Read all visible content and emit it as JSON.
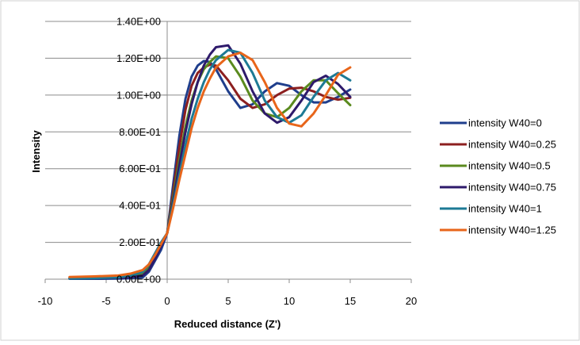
{
  "chart_data": {
    "type": "line",
    "title": "",
    "xlabel": "Reduced distance (Z')",
    "ylabel": "Intensity",
    "xlim": [
      -10,
      20
    ],
    "ylim": [
      0,
      1.4
    ],
    "x_ticks": [
      -10,
      -5,
      0,
      5,
      10,
      15,
      20
    ],
    "x_tick_labels": [
      "-10",
      "-5",
      "0",
      "5",
      "10",
      "15",
      "20"
    ],
    "y_ticks": [
      0,
      0.2,
      0.4,
      0.6,
      0.8,
      1.0,
      1.2,
      1.4
    ],
    "y_tick_labels": [
      "0.00E+00",
      "2.00E-01",
      "4.00E-01",
      "6.00E-01",
      "8.00E-01",
      "1.00E+00",
      "1.20E+00",
      "1.40E+00"
    ],
    "grid": "horizontal",
    "legend_position": "right",
    "series": [
      {
        "name": "intensity W40=0",
        "color": "#1F3E8C",
        "x": [
          -8,
          -6,
          -4,
          -3,
          -2,
          -1.5,
          -1,
          -0.5,
          0,
          0.5,
          1,
          1.5,
          2,
          2.5,
          3,
          3.5,
          4,
          5,
          6,
          7,
          8,
          9,
          10,
          11,
          12,
          13,
          14,
          15
        ],
        "y": [
          0.002,
          0.002,
          0.003,
          0.005,
          0.01,
          0.04,
          0.1,
          0.16,
          0.25,
          0.52,
          0.78,
          0.98,
          1.1,
          1.16,
          1.185,
          1.18,
          1.14,
          1.02,
          0.93,
          0.95,
          1.02,
          1.065,
          1.05,
          1.0,
          0.96,
          0.96,
          0.99,
          1.03
        ]
      },
      {
        "name": "intensity W40=0.25",
        "color": "#8C1F1F",
        "x": [
          -8,
          -6,
          -4,
          -3,
          -2,
          -1.5,
          -1,
          -0.5,
          0,
          0.5,
          1,
          1.5,
          2,
          2.5,
          3,
          3.5,
          4,
          5,
          6,
          7,
          8,
          9,
          10,
          11,
          12,
          13,
          14,
          15
        ],
        "y": [
          0.008,
          0.01,
          0.012,
          0.018,
          0.03,
          0.06,
          0.12,
          0.19,
          0.25,
          0.48,
          0.72,
          0.92,
          1.05,
          1.12,
          1.15,
          1.165,
          1.16,
          1.08,
          0.98,
          0.93,
          0.95,
          1.0,
          1.035,
          1.04,
          1.02,
          0.99,
          0.975,
          0.985
        ]
      },
      {
        "name": "intensity W40=0.5",
        "color": "#5A8A1E",
        "x": [
          -8,
          -6,
          -4,
          -3,
          -2,
          -1.5,
          -1,
          -0.5,
          0,
          0.5,
          1,
          1.5,
          2,
          2.5,
          3,
          3.5,
          4,
          5,
          6,
          7,
          8,
          9,
          10,
          11,
          12,
          13,
          14,
          15
        ],
        "y": [
          0.005,
          0.006,
          0.008,
          0.015,
          0.03,
          0.06,
          0.12,
          0.19,
          0.25,
          0.45,
          0.65,
          0.83,
          0.97,
          1.07,
          1.14,
          1.18,
          1.21,
          1.2,
          1.1,
          0.97,
          0.9,
          0.88,
          0.93,
          1.02,
          1.08,
          1.08,
          1.01,
          0.945
        ]
      },
      {
        "name": "intensity W40=0.75",
        "color": "#2E1A6B",
        "x": [
          -8,
          -6,
          -4,
          -3,
          -2,
          -1.5,
          -1,
          -0.5,
          0,
          0.5,
          1,
          1.5,
          2,
          2.5,
          3,
          3.5,
          4,
          5,
          6,
          7,
          8,
          9,
          10,
          11,
          12,
          13,
          14,
          15
        ],
        "y": [
          0.004,
          0.005,
          0.007,
          0.01,
          0.02,
          0.05,
          0.11,
          0.18,
          0.25,
          0.43,
          0.62,
          0.8,
          0.95,
          1.07,
          1.16,
          1.22,
          1.26,
          1.27,
          1.17,
          1.02,
          0.9,
          0.85,
          0.88,
          0.97,
          1.07,
          1.105,
          1.06,
          0.99
        ]
      },
      {
        "name": "intensity W40=1",
        "color": "#1D7A95",
        "x": [
          -8,
          -6,
          -4,
          -3,
          -2,
          -1.5,
          -1,
          -0.5,
          0,
          0.5,
          1,
          1.5,
          2,
          2.5,
          3,
          3.5,
          4,
          5,
          6,
          7,
          8,
          9,
          10,
          11,
          12,
          13,
          14,
          15
        ],
        "y": [
          0.004,
          0.006,
          0.01,
          0.02,
          0.04,
          0.08,
          0.14,
          0.2,
          0.25,
          0.41,
          0.57,
          0.73,
          0.87,
          0.98,
          1.07,
          1.14,
          1.19,
          1.245,
          1.23,
          1.12,
          0.97,
          0.88,
          0.85,
          0.89,
          0.99,
          1.08,
          1.12,
          1.08
        ]
      },
      {
        "name": "intensity W40=1.25",
        "color": "#E8651A",
        "x": [
          -8,
          -6,
          -4,
          -3,
          -2,
          -1.5,
          -1,
          -0.5,
          0,
          0.5,
          1,
          1.5,
          2,
          2.5,
          3,
          3.5,
          4,
          5,
          6,
          7,
          8,
          9,
          10,
          11,
          12,
          13,
          14,
          15
        ],
        "y": [
          0.012,
          0.015,
          0.02,
          0.03,
          0.05,
          0.08,
          0.13,
          0.19,
          0.25,
          0.39,
          0.54,
          0.68,
          0.82,
          0.93,
          1.02,
          1.09,
          1.15,
          1.21,
          1.23,
          1.19,
          1.07,
          0.93,
          0.845,
          0.83,
          0.9,
          1.0,
          1.11,
          1.15
        ]
      }
    ]
  }
}
